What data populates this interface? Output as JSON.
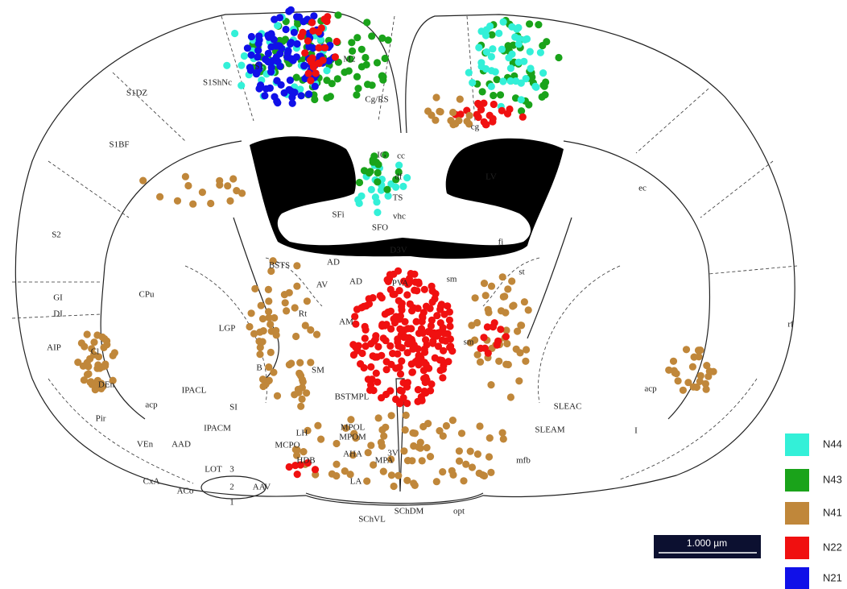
{
  "labels": [
    "S1ShNc",
    "S1DZ",
    "S1BF",
    "S2",
    "GI",
    "DI",
    "AIP",
    "Cl",
    "DEn",
    "Pir",
    "VEn",
    "AAD",
    "CxA",
    "ACo",
    "LOT",
    "3",
    "2",
    "1",
    "AAV",
    "CPu",
    "LGP",
    "B",
    "IPACL",
    "acp",
    "SI",
    "IPACM",
    "MCPO",
    "HDB",
    "LH",
    "SM",
    "BSTS",
    "AV",
    "AD",
    "AD",
    "Rt",
    "AM",
    "PVA",
    "BSTMPL",
    "MPOL",
    "MPOM",
    "AHA",
    "MPA",
    "LA",
    "3V",
    "SChVL",
    "SChDM",
    "opt",
    "mfb",
    "SLEAM",
    "SLEAC",
    "acp",
    "I",
    "rf",
    "ec",
    "fi",
    "sm",
    "st",
    "sm",
    "LV",
    "D3V",
    "SFO",
    "SFi",
    "vhc",
    "TS",
    "df",
    "IG",
    "cc",
    "cg",
    "Cg/RS",
    "M2",
    "S1"
  ],
  "legend": [
    {
      "name": "N44",
      "color": "#33f0d8"
    },
    {
      "name": "N43",
      "color": "#1aa31a"
    },
    {
      "name": "N41",
      "color": "#c0873a"
    },
    {
      "name": "N22",
      "color": "#f01010"
    },
    {
      "name": "N21",
      "color": "#1010e8"
    }
  ],
  "scale_bar": "1.000 µm"
}
